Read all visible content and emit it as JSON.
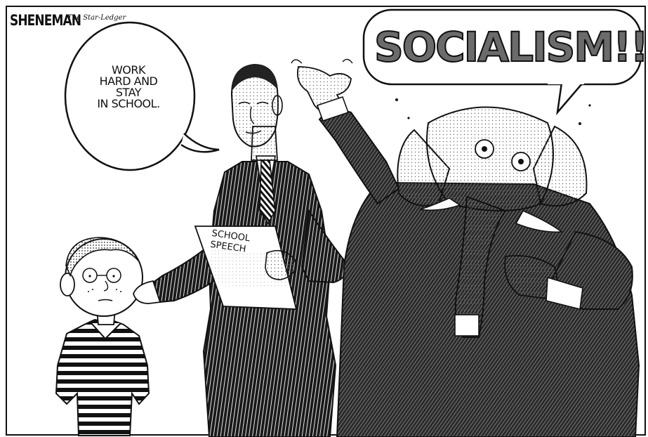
{
  "cartoon": {
    "signature": "SHENEMAN",
    "publication": "The Star-Ledger",
    "speech_left": [
      "WORK",
      "HARD AND",
      "STAY",
      "IN SCHOOL."
    ],
    "speech_right": "SOCIALISM!!!",
    "paper_label": [
      "SCHOOL",
      "SPEECH"
    ]
  },
  "colors": {
    "ink": "#111111",
    "paper": "#ffffff",
    "screen": "#8a8a8a"
  },
  "icons": [
    "boy-figure",
    "president-figure",
    "elephant-figure",
    "speech-bubble"
  ]
}
